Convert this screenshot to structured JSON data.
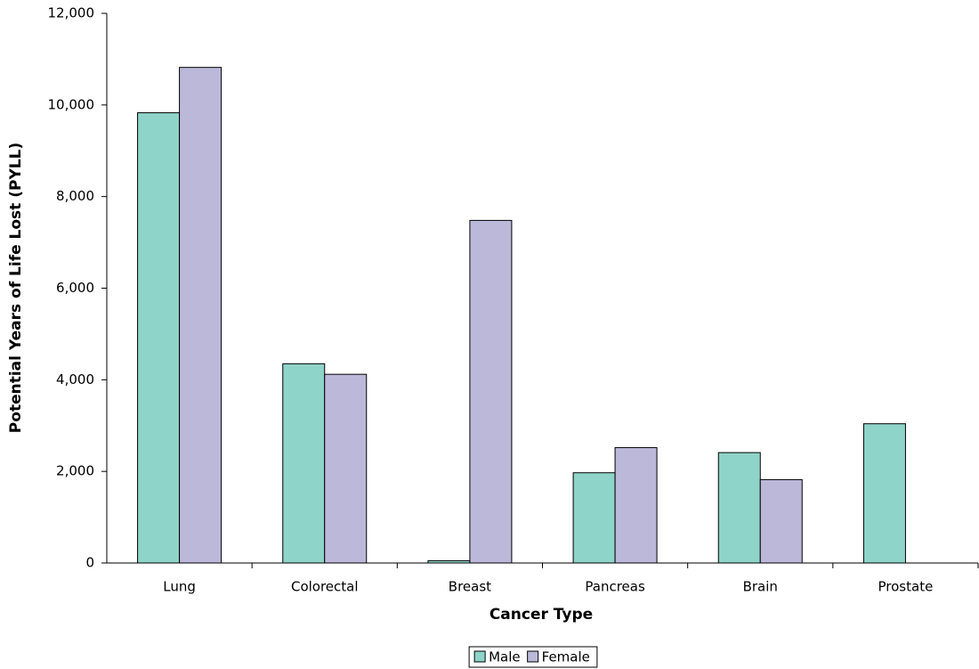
{
  "chart_data": {
    "type": "bar",
    "x_label": "Cancer Type",
    "y_label": "Potential Years of Life Lost (PYLL)",
    "categories": [
      "Lung",
      "Colorectal",
      "Breast",
      "Pancreas",
      "Brain",
      "Prostate"
    ],
    "series": [
      {
        "name": "Male",
        "color": "#8fd4c8",
        "values": [
          9830,
          4350,
          50,
          1970,
          2410,
          3040
        ]
      },
      {
        "name": "Female",
        "color": "#bcb8da",
        "values": [
          10820,
          4120,
          7480,
          2520,
          1820,
          null
        ]
      }
    ],
    "ylim": [
      0,
      12000
    ],
    "yticks": [
      0,
      {
        "value": 2000,
        "label": "2,000"
      },
      {
        "value": 4000,
        "label": "4,000"
      },
      {
        "value": 6000,
        "label": "6,000"
      },
      {
        "value": 8000,
        "label": "8,000"
      },
      {
        "value": 10000,
        "label": "10,000"
      },
      {
        "value": 12000,
        "label": "12,000"
      }
    ],
    "grid": false,
    "legend": "bottom"
  }
}
